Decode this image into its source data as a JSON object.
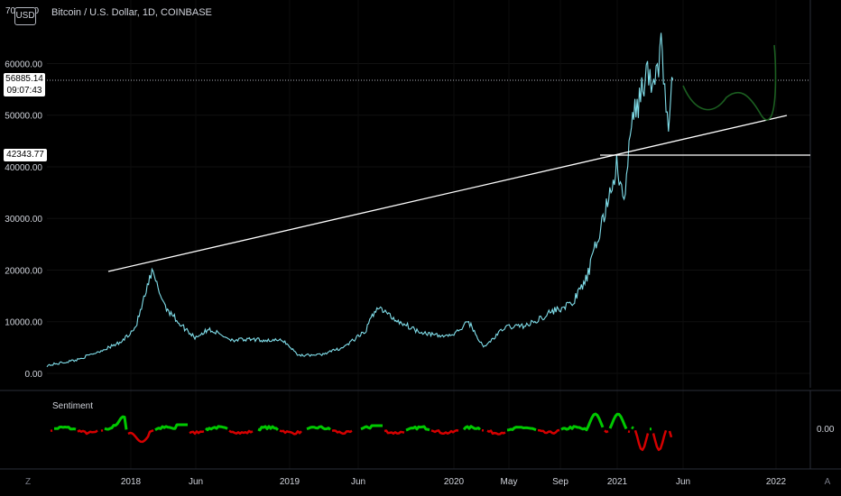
{
  "header": {
    "currency_button": "USD",
    "symbol_title": "Bitcoin / U.S. Dollar, 1D, COINBASE"
  },
  "price_scale": {
    "labels": [
      "60000.00",
      "50000.00",
      "40000.00",
      "30000.00",
      "20000.00",
      "10000.00",
      "0.00"
    ],
    "partial_top_label": "700",
    "partial_top_label_suffix": "00"
  },
  "last_price": {
    "value": "56885.14",
    "countdown": "09:07:43"
  },
  "horizontal_level": {
    "value": "42343.77"
  },
  "time_axis": {
    "labels": [
      "2018",
      "Jun",
      "2019",
      "Jun",
      "2020",
      "May",
      "Sep",
      "2021",
      "Jun",
      "2022"
    ]
  },
  "indicator": {
    "name": "Sentiment",
    "zero_label": "0.00"
  },
  "bottom_buttons": {
    "left": "Z",
    "right": "A"
  },
  "colors": {
    "background": "#000000",
    "price_line": "#80deea",
    "trend_line": "#ffffff",
    "projection": "#1b5e20",
    "sentiment_positive": "#00c800",
    "sentiment_negative": "#d50000",
    "grid": "#1c1c1c"
  },
  "chart_data": {
    "type": "line",
    "series": [
      {
        "values": [
          [
            2017.25,
            1500
          ],
          [
            2017.45,
            2600
          ],
          [
            2017.6,
            4200
          ],
          [
            2017.75,
            6000
          ],
          [
            2017.85,
            9000
          ],
          [
            2017.96,
            19500
          ],
          [
            2018.05,
            13000
          ],
          [
            2018.15,
            9500
          ],
          [
            2018.25,
            7000
          ],
          [
            2018.35,
            8500
          ],
          [
            2018.5,
            6500
          ],
          [
            2018.65,
            6500
          ],
          [
            2018.85,
            6300
          ],
          [
            2018.95,
            3500
          ],
          [
            2019.1,
            3600
          ],
          [
            2019.25,
            5000
          ],
          [
            2019.4,
            8000
          ],
          [
            2019.48,
            13000
          ],
          [
            2019.6,
            10500
          ],
          [
            2019.75,
            8300
          ],
          [
            2019.9,
            7200
          ],
          [
            2020.0,
            7500
          ],
          [
            2020.1,
            10000
          ],
          [
            2020.2,
            5000
          ],
          [
            2020.35,
            9000
          ],
          [
            2020.5,
            9300
          ],
          [
            2020.65,
            11800
          ],
          [
            2020.8,
            13500
          ],
          [
            2020.9,
            18500
          ],
          [
            2021.0,
            29000
          ],
          [
            2021.1,
            40000
          ],
          [
            2021.15,
            33000
          ],
          [
            2021.2,
            48000
          ],
          [
            2021.3,
            58000
          ],
          [
            2021.35,
            55000
          ],
          [
            2021.4,
            63500
          ],
          [
            2021.45,
            47000
          ],
          [
            2021.48,
            56885
          ]
        ]
      }
    ],
    "ylim": [
      0,
      70000
    ],
    "xlim": [
      2017.25,
      2022.25
    ]
  }
}
